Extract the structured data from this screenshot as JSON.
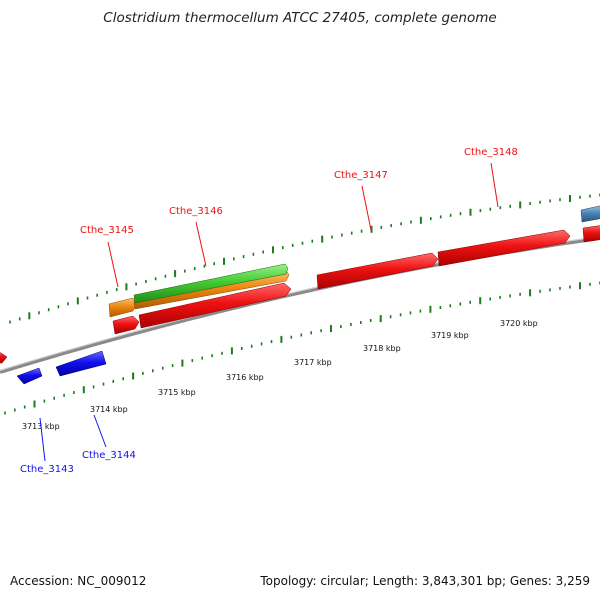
{
  "title": "Clostridium thermocellum ATCC 27405, complete genome",
  "footer": {
    "accession": "Accession: NC_009012",
    "stats": "Topology: circular; Length: 3,843,301 bp; Genes: 3,259"
  },
  "colors": {
    "forward_gene": "#ee1111",
    "reverse_gene": "#1111ee",
    "ticks": "#1e7a1e",
    "rna_green": "#44cc33",
    "cds_orange": "#ee8811",
    "steelblue_gene": "#4682b4",
    "backbone": "#8a8a8a"
  },
  "scale_labels": [
    "3713 kbp",
    "3714 kbp",
    "3715 kbp",
    "3716 kbp",
    "3717 kbp",
    "3718 kbp",
    "3719 kbp",
    "3720 kbp"
  ],
  "gene_labels": {
    "forward": [
      "Cthe_3145",
      "Cthe_3146",
      "Cthe_3147",
      "Cthe_3148"
    ],
    "reverse": [
      "Cthe_3143",
      "Cthe_3144"
    ]
  }
}
